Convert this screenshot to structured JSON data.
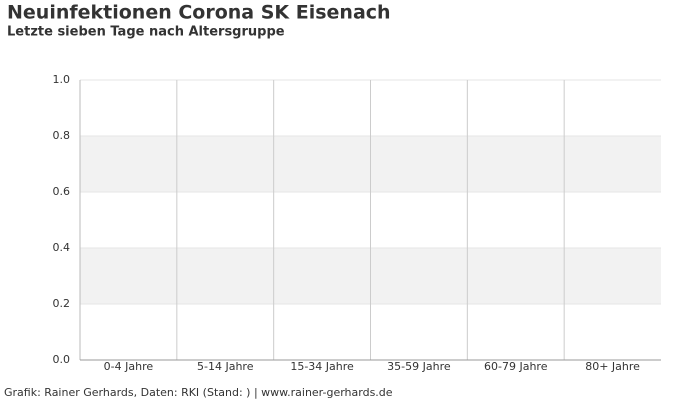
{
  "chart_data": {
    "type": "bar",
    "title": "Neuinfektionen Corona SK Eisenach",
    "subtitle": "Letzte sieben Tage nach Altersgruppe",
    "categories": [
      "0-4 Jahre",
      "5-14 Jahre",
      "15-34 Jahre",
      "35-59 Jahre",
      "60-79 Jahre",
      "80+ Jahre"
    ],
    "values": [
      0,
      0,
      0,
      0,
      0,
      0
    ],
    "color": "#4e79a7",
    "ylim": [
      0,
      1
    ],
    "yticks": [
      {
        "value": 0,
        "label": "0.0"
      },
      0.2,
      0.4,
      0.6,
      0.8,
      {
        "value": 1,
        "label": "1.0"
      }
    ],
    "grid": true,
    "source": "Grafik: Rainer Gerhards, Daten: RKI (Stand: ) | www.rainer-gerhards.de"
  }
}
